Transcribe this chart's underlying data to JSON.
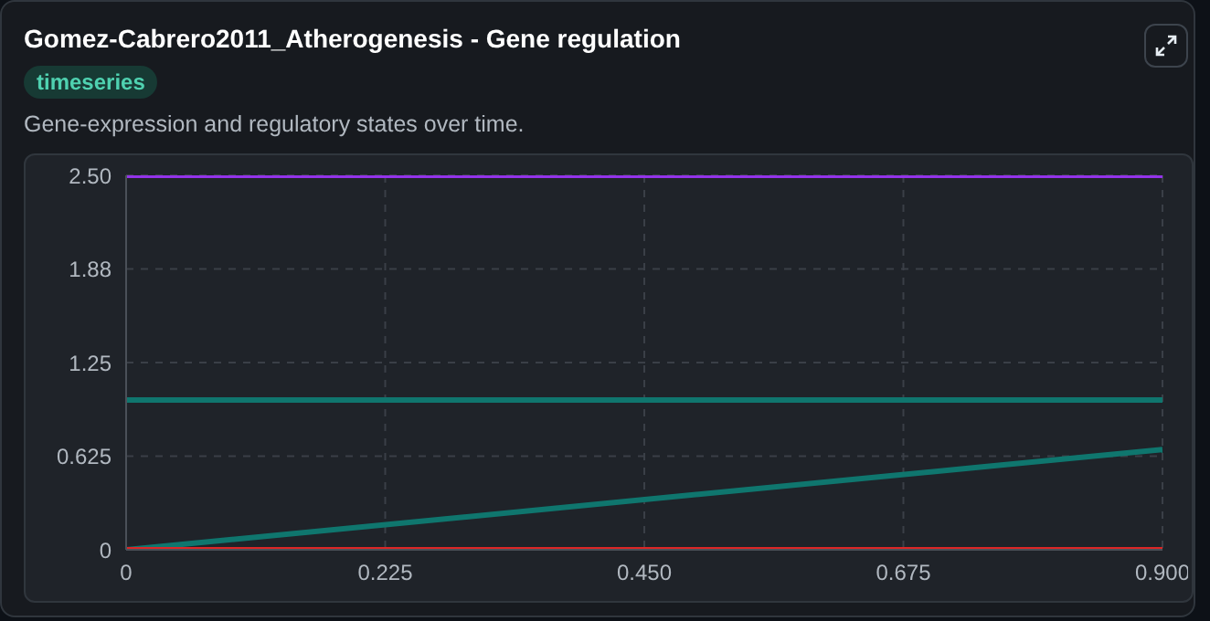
{
  "chart_data": {
    "type": "line",
    "title": "Gomez-Cabrero2011_Atherogenesis - Gene regulation",
    "subtitle": "Gene-expression and regulatory states over time.",
    "annotations": [
      "timeseries"
    ],
    "x": [
      0,
      0.9
    ],
    "series": [
      {
        "color": "#9333ea",
        "values": [
          2.5,
          2.5
        ]
      },
      {
        "color": "#0f766e",
        "values": [
          1,
          1
        ]
      },
      {
        "color": "#0f766e",
        "values": [
          0,
          0.67
        ]
      },
      {
        "color": "#dc2626",
        "values": [
          0,
          0
        ]
      }
    ],
    "xlim": [
      0,
      0.9
    ],
    "xticks": [
      0,
      0.225,
      {
        "value": 0.45,
        "label": "0.450"
      },
      0.675,
      {
        "value": 0.9,
        "label": "0.900"
      }
    ],
    "ylim": [
      0,
      2.5
    ],
    "yticks": [
      0,
      0.625,
      1.25,
      {
        "value": 1.875,
        "label": "1.88"
      },
      {
        "value": 2.5,
        "label": "2.50"
      }
    ],
    "grid": true,
    "legend": false,
    "marker": "none",
    "line_style": "solid"
  }
}
